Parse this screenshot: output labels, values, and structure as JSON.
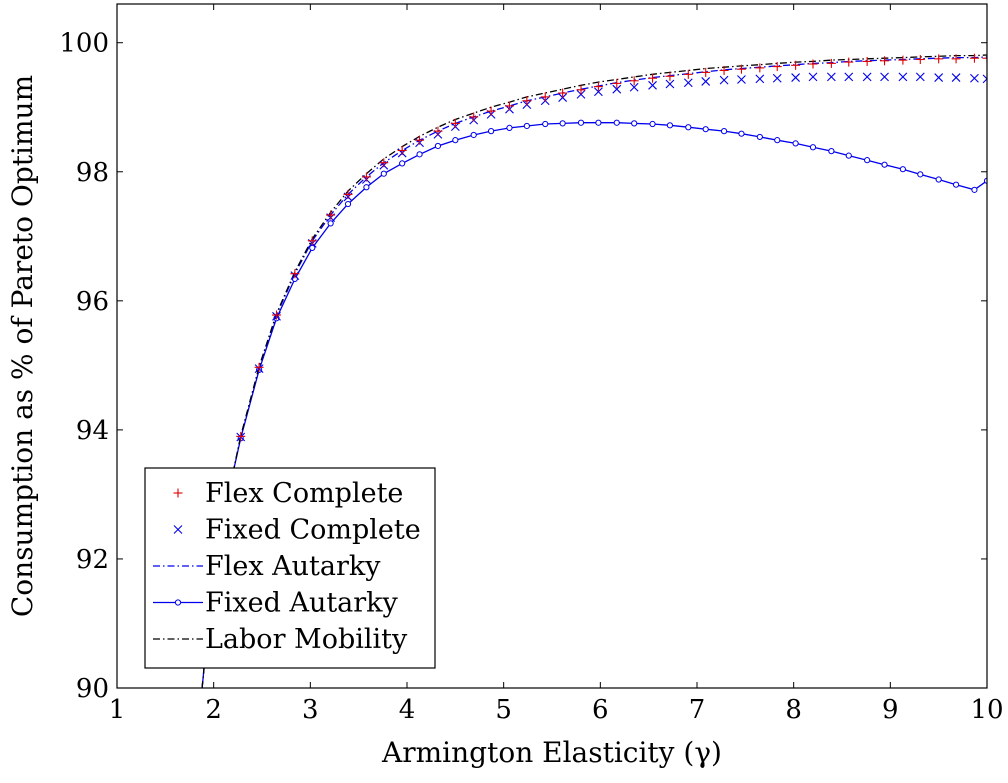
{
  "chart_data": {
    "type": "line",
    "title": "",
    "xlabel": "Armington Elasticity (γ)",
    "ylabel": "Consumption as % of Pareto Optimum",
    "xlim": [
      1,
      10
    ],
    "ylim": [
      90,
      100.6
    ],
    "xticks": [
      1,
      2,
      3,
      4,
      5,
      6,
      7,
      8,
      9,
      10
    ],
    "yticks": [
      90,
      92,
      94,
      96,
      98,
      100
    ],
    "grid": false,
    "legend_position": "bottom-left",
    "x": [
      2.28,
      2.47,
      2.65,
      2.84,
      3.02,
      3.21,
      3.39,
      3.58,
      3.76,
      3.95,
      4.13,
      4.32,
      4.5,
      4.69,
      4.87,
      5.06,
      5.24,
      5.43,
      5.61,
      5.8,
      5.98,
      6.17,
      6.35,
      6.54,
      6.72,
      6.91,
      7.09,
      7.28,
      7.46,
      7.65,
      7.83,
      8.02,
      8.2,
      8.39,
      8.57,
      8.76,
      8.94,
      9.13,
      9.31,
      9.5,
      9.68,
      9.87,
      10.0
    ],
    "series": [
      {
        "name": "Flex Complete",
        "style": "red-plus-markers",
        "color": "#e00000",
        "values": [
          93.9,
          94.97,
          95.78,
          96.42,
          96.93,
          97.33,
          97.65,
          97.92,
          98.14,
          98.33,
          98.49,
          98.63,
          98.75,
          98.85,
          98.94,
          99.02,
          99.1,
          99.16,
          99.22,
          99.27,
          99.32,
          99.37,
          99.41,
          99.45,
          99.48,
          99.51,
          99.54,
          99.57,
          99.59,
          99.61,
          99.63,
          99.65,
          99.67,
          99.68,
          99.7,
          99.71,
          99.72,
          99.73,
          99.74,
          99.75,
          99.75,
          99.76,
          99.76
        ]
      },
      {
        "name": "Fixed Complete",
        "style": "blue-x-markers",
        "color": "#0000ee",
        "values": [
          93.89,
          94.95,
          95.76,
          96.39,
          96.89,
          97.29,
          97.61,
          97.88,
          98.1,
          98.29,
          98.45,
          98.58,
          98.7,
          98.8,
          98.89,
          98.97,
          99.04,
          99.1,
          99.15,
          99.2,
          99.24,
          99.28,
          99.31,
          99.34,
          99.36,
          99.38,
          99.4,
          99.42,
          99.43,
          99.44,
          99.45,
          99.46,
          99.47,
          99.47,
          99.47,
          99.47,
          99.47,
          99.47,
          99.47,
          99.46,
          99.46,
          99.45,
          99.44
        ]
      },
      {
        "name": "Flex Autarky",
        "style": "blue-dash-dot-line",
        "color": "#0000ee",
        "values": [
          93.9,
          94.97,
          95.78,
          96.42,
          96.93,
          97.33,
          97.65,
          97.92,
          98.14,
          98.33,
          98.49,
          98.63,
          98.75,
          98.85,
          98.94,
          99.02,
          99.1,
          99.16,
          99.22,
          99.28,
          99.33,
          99.38,
          99.42,
          99.46,
          99.49,
          99.52,
          99.55,
          99.58,
          99.6,
          99.62,
          99.64,
          99.66,
          99.68,
          99.69,
          99.71,
          99.72,
          99.73,
          99.74,
          99.75,
          99.76,
          99.77,
          99.77,
          99.78
        ]
      },
      {
        "name": "Fixed Autarky",
        "style": "blue-line-circle-markers",
        "color": "#0000ee",
        "values": [
          93.87,
          94.93,
          95.73,
          96.34,
          96.82,
          97.2,
          97.5,
          97.76,
          97.97,
          98.13,
          98.27,
          98.4,
          98.49,
          98.57,
          98.63,
          98.68,
          98.71,
          98.74,
          98.75,
          98.76,
          98.76,
          98.76,
          98.75,
          98.74,
          98.72,
          98.69,
          98.66,
          98.63,
          98.59,
          98.54,
          98.49,
          98.44,
          98.38,
          98.32,
          98.25,
          98.18,
          98.11,
          98.04,
          97.96,
          97.88,
          97.8,
          97.72,
          97.86
        ]
      },
      {
        "name": "Labor Mobility",
        "style": "black-dash-dot-line",
        "color": "#000000",
        "values": [
          93.9,
          94.98,
          95.8,
          96.45,
          96.96,
          97.37,
          97.7,
          97.97,
          98.2,
          98.39,
          98.55,
          98.69,
          98.81,
          98.91,
          99.0,
          99.08,
          99.16,
          99.22,
          99.28,
          99.34,
          99.39,
          99.43,
          99.47,
          99.51,
          99.54,
          99.57,
          99.6,
          99.62,
          99.64,
          99.66,
          99.68,
          99.7,
          99.71,
          99.73,
          99.74,
          99.75,
          99.76,
          99.77,
          99.78,
          99.79,
          99.8,
          99.8,
          99.81
        ]
      }
    ],
    "line_tail": {
      "x": [
        1.88,
        1.92,
        1.97,
        2.03,
        2.1,
        2.18,
        2.28
      ],
      "values": [
        90.0,
        90.6,
        91.2,
        91.85,
        92.5,
        93.2,
        93.9
      ]
    }
  }
}
